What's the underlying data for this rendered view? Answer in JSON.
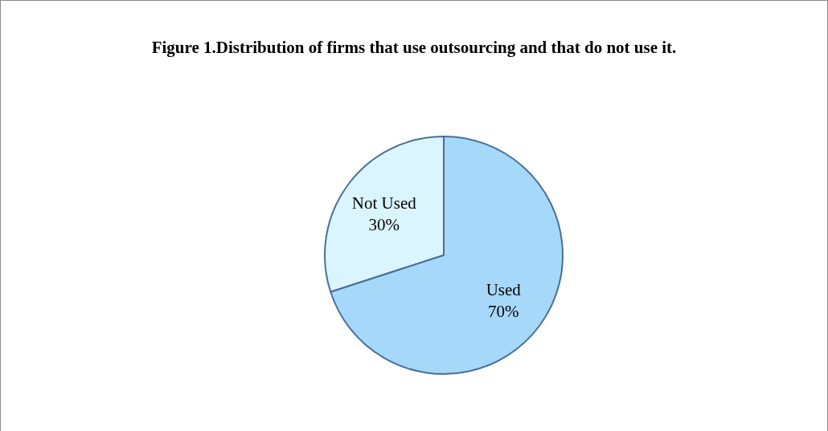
{
  "chart_data": {
    "type": "pie",
    "title": "Figure 1.Distribution of firms that use outsourcing and that do not use it.",
    "categories": [
      "Used",
      "Not Used"
    ],
    "values": [
      70,
      30
    ],
    "colors": [
      "#a6d8fa",
      "#dbf5fe"
    ],
    "value_labels": [
      "70%",
      "30%"
    ]
  }
}
